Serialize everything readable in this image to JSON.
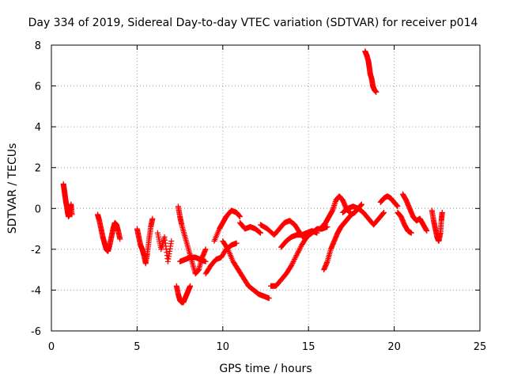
{
  "chart_data": {
    "type": "scatter",
    "title": "Day 334 of 2019, Sidereal Day-to-day VTEC variation (SDTVAR) for receiver p014",
    "xlabel": "GPS time / hours",
    "ylabel": "SDTVAR / TECUs",
    "xlim": [
      0,
      25
    ],
    "ylim": [
      -6,
      8
    ],
    "xticks": [
      "0",
      "5",
      "10",
      "15",
      "20",
      "25"
    ],
    "yticks": [
      "-6",
      "-4",
      "-2",
      "0",
      "2",
      "4",
      "6",
      "8"
    ],
    "grid": true,
    "marker": "+",
    "color": "#ff0000",
    "series": [
      {
        "name": "SDTVAR",
        "segments": [
          [
            [
              0.7,
              1.2
            ],
            [
              0.75,
              0.9
            ],
            [
              0.8,
              0.6
            ],
            [
              0.85,
              0.3
            ],
            [
              0.9,
              0.1
            ],
            [
              0.95,
              -0.2
            ],
            [
              1.0,
              -0.4
            ],
            [
              1.05,
              -0.3
            ],
            [
              1.1,
              0.0
            ],
            [
              1.15,
              0.2
            ],
            [
              1.2,
              -0.3
            ]
          ],
          [
            [
              2.7,
              -0.3
            ],
            [
              2.8,
              -0.6
            ],
            [
              2.9,
              -1.0
            ],
            [
              3.0,
              -1.4
            ],
            [
              3.1,
              -1.7
            ],
            [
              3.2,
              -2.0
            ],
            [
              3.3,
              -2.1
            ],
            [
              3.4,
              -1.8
            ],
            [
              3.5,
              -1.4
            ],
            [
              3.6,
              -1.0
            ],
            [
              3.7,
              -0.7
            ],
            [
              3.8,
              -0.8
            ],
            [
              3.9,
              -1.1
            ],
            [
              4.0,
              -1.5
            ]
          ],
          [
            [
              5.0,
              -1.0
            ],
            [
              5.1,
              -1.4
            ],
            [
              5.2,
              -1.8
            ],
            [
              5.3,
              -2.0
            ],
            [
              5.4,
              -2.3
            ],
            [
              5.5,
              -2.7
            ],
            [
              5.6,
              -2.2
            ],
            [
              5.7,
              -1.5
            ],
            [
              5.8,
              -0.9
            ],
            [
              5.9,
              -0.5
            ]
          ],
          [
            [
              6.2,
              -1.2
            ],
            [
              6.4,
              -2.0
            ],
            [
              6.6,
              -1.4
            ],
            [
              6.8,
              -2.6
            ],
            [
              7.0,
              -1.6
            ]
          ],
          [
            [
              7.4,
              0.1
            ],
            [
              7.5,
              -0.4
            ],
            [
              7.6,
              -0.8
            ],
            [
              7.8,
              -1.4
            ],
            [
              8.0,
              -2.0
            ],
            [
              8.2,
              -2.6
            ],
            [
              8.4,
              -3.2
            ],
            [
              8.6,
              -3.0
            ],
            [
              8.8,
              -2.4
            ],
            [
              9.0,
              -2.0
            ]
          ],
          [
            [
              7.3,
              -3.8
            ],
            [
              7.4,
              -4.2
            ],
            [
              7.5,
              -4.5
            ],
            [
              7.6,
              -4.6
            ],
            [
              7.7,
              -4.6
            ],
            [
              7.8,
              -4.4
            ],
            [
              7.9,
              -4.2
            ],
            [
              8.0,
              -4.0
            ],
            [
              8.1,
              -3.8
            ]
          ],
          [
            [
              7.5,
              -2.6
            ],
            [
              7.8,
              -2.5
            ],
            [
              8.1,
              -2.4
            ],
            [
              8.4,
              -2.4
            ],
            [
              8.7,
              -2.5
            ],
            [
              9.0,
              -2.6
            ]
          ],
          [
            [
              9.5,
              -1.6
            ],
            [
              9.8,
              -1.0
            ],
            [
              10.0,
              -0.7
            ],
            [
              10.2,
              -0.4
            ],
            [
              10.5,
              -0.1
            ],
            [
              10.8,
              -0.2
            ],
            [
              11.0,
              -0.4
            ]
          ],
          [
            [
              9.0,
              -3.2
            ],
            [
              9.3,
              -2.8
            ],
            [
              9.6,
              -2.5
            ],
            [
              9.9,
              -2.4
            ],
            [
              10.2,
              -2.0
            ],
            [
              10.5,
              -1.8
            ],
            [
              10.8,
              -1.7
            ]
          ],
          [
            [
              10.0,
              -1.6
            ],
            [
              10.3,
              -2.0
            ],
            [
              10.6,
              -2.6
            ],
            [
              10.9,
              -3.0
            ],
            [
              11.2,
              -3.4
            ],
            [
              11.5,
              -3.8
            ],
            [
              11.8,
              -4.0
            ],
            [
              12.1,
              -4.2
            ],
            [
              12.4,
              -4.3
            ],
            [
              12.7,
              -4.4
            ]
          ],
          [
            [
              11.0,
              -0.7
            ],
            [
              11.3,
              -1.0
            ],
            [
              11.6,
              -0.9
            ],
            [
              11.9,
              -1.0
            ],
            [
              12.2,
              -1.2
            ]
          ],
          [
            [
              12.2,
              -0.8
            ],
            [
              12.6,
              -1.0
            ],
            [
              13.0,
              -1.3
            ],
            [
              13.3,
              -1.0
            ],
            [
              13.6,
              -0.7
            ],
            [
              13.9,
              -0.6
            ],
            [
              14.2,
              -0.8
            ],
            [
              14.5,
              -1.2
            ],
            [
              14.8,
              -1.5
            ]
          ],
          [
            [
              12.8,
              -3.8
            ],
            [
              13.1,
              -3.8
            ],
            [
              13.4,
              -3.5
            ],
            [
              13.7,
              -3.2
            ],
            [
              14.0,
              -2.8
            ],
            [
              14.3,
              -2.3
            ],
            [
              14.6,
              -1.8
            ],
            [
              14.9,
              -1.4
            ],
            [
              15.2,
              -1.2
            ],
            [
              15.5,
              -1.0
            ],
            [
              15.8,
              -1.0
            ],
            [
              16.1,
              -0.9
            ]
          ],
          [
            [
              13.4,
              -1.9
            ],
            [
              13.7,
              -1.6
            ],
            [
              14.0,
              -1.4
            ],
            [
              14.3,
              -1.3
            ],
            [
              14.6,
              -1.3
            ],
            [
              14.9,
              -1.2
            ],
            [
              15.2,
              -1.1
            ],
            [
              15.5,
              -1.2
            ]
          ],
          [
            [
              15.8,
              -0.9
            ],
            [
              16.0,
              -0.7
            ],
            [
              16.2,
              -0.4
            ],
            [
              16.4,
              -0.1
            ],
            [
              16.6,
              0.4
            ],
            [
              16.8,
              0.6
            ],
            [
              17.0,
              0.4
            ],
            [
              17.2,
              0.0
            ],
            [
              17.4,
              -0.2
            ]
          ],
          [
            [
              15.9,
              -3.0
            ],
            [
              16.1,
              -2.6
            ],
            [
              16.3,
              -2.0
            ],
            [
              16.5,
              -1.6
            ],
            [
              16.7,
              -1.2
            ],
            [
              16.9,
              -0.9
            ],
            [
              17.1,
              -0.7
            ],
            [
              17.3,
              -0.5
            ],
            [
              17.5,
              -0.3
            ],
            [
              17.7,
              -0.2
            ],
            [
              17.9,
              0.0
            ],
            [
              18.1,
              0.2
            ]
          ],
          [
            [
              17.0,
              -0.2
            ],
            [
              17.3,
              0.0
            ],
            [
              17.6,
              0.1
            ],
            [
              17.9,
              0.0
            ],
            [
              18.2,
              -0.2
            ],
            [
              18.5,
              -0.5
            ],
            [
              18.8,
              -0.8
            ],
            [
              19.1,
              -0.5
            ],
            [
              19.4,
              -0.2
            ]
          ],
          [
            [
              19.2,
              0.3
            ],
            [
              19.4,
              0.5
            ],
            [
              19.6,
              0.6
            ],
            [
              19.8,
              0.5
            ],
            [
              20.0,
              0.3
            ],
            [
              20.2,
              0.1
            ]
          ],
          [
            [
              18.3,
              7.7
            ],
            [
              18.4,
              7.5
            ],
            [
              18.5,
              7.2
            ],
            [
              18.55,
              6.9
            ],
            [
              18.6,
              6.6
            ],
            [
              18.7,
              6.3
            ],
            [
              18.75,
              6.0
            ],
            [
              18.85,
              5.8
            ],
            [
              18.95,
              5.7
            ]
          ],
          [
            [
              20.5,
              0.7
            ],
            [
              20.7,
              0.4
            ],
            [
              20.9,
              0.0
            ],
            [
              21.1,
              -0.4
            ],
            [
              21.3,
              -0.6
            ],
            [
              21.5,
              -0.5
            ],
            [
              21.7,
              -0.8
            ],
            [
              21.9,
              -1.1
            ]
          ],
          [
            [
              20.2,
              -0.2
            ],
            [
              20.4,
              -0.4
            ],
            [
              20.6,
              -0.8
            ],
            [
              20.8,
              -1.1
            ],
            [
              21.0,
              -1.2
            ]
          ],
          [
            [
              22.2,
              -0.1
            ],
            [
              22.3,
              -0.6
            ],
            [
              22.4,
              -1.0
            ],
            [
              22.5,
              -1.4
            ],
            [
              22.6,
              -1.6
            ],
            [
              22.7,
              -1.2
            ],
            [
              22.75,
              -0.6
            ],
            [
              22.8,
              -0.2
            ]
          ]
        ]
      }
    ]
  }
}
